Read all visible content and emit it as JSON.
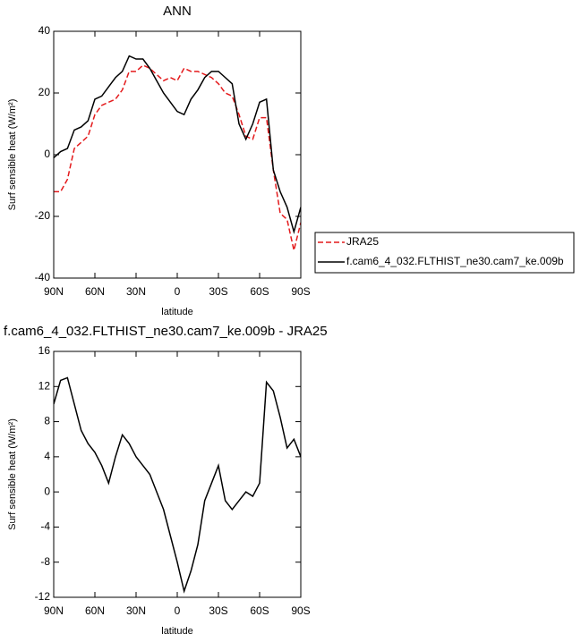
{
  "chart_data": [
    {
      "type": "line",
      "title": "ANN",
      "x_label": "latitude",
      "y_label": "Surf sensible heat (W/m²)",
      "x": [
        90,
        85,
        80,
        75,
        70,
        65,
        60,
        55,
        50,
        45,
        40,
        35,
        30,
        25,
        20,
        15,
        10,
        5,
        0,
        -5,
        -10,
        -15,
        -20,
        -25,
        -30,
        -35,
        -40,
        -45,
        -50,
        -55,
        -60,
        -65,
        -70,
        -75,
        -80,
        -85,
        -90
      ],
      "series": [
        {
          "name": "JRA25",
          "color": "#e41a1c",
          "dash": true,
          "values": [
            -12,
            -12,
            -8,
            2,
            4,
            6,
            13,
            16,
            17,
            18,
            21,
            27,
            27,
            29,
            28,
            26,
            24,
            25,
            24,
            28,
            27,
            27,
            26,
            25,
            23,
            20,
            19,
            13,
            6,
            5,
            12,
            12,
            -5,
            -19,
            -21,
            -31,
            -22
          ]
        },
        {
          "name": "f.cam6_4_032.FLTHIST_ne30.cam7_ke.009b",
          "color": "#000000",
          "dash": false,
          "values": [
            -1,
            1,
            2,
            8,
            9,
            11,
            18,
            19,
            22,
            25,
            27,
            32,
            31,
            31,
            28,
            24,
            20,
            17,
            14,
            13,
            18,
            21,
            25,
            27,
            27,
            25,
            23,
            10,
            5,
            10,
            17,
            18,
            -5,
            -12,
            -17,
            -25,
            -17
          ]
        }
      ],
      "xlim": [
        90,
        -90
      ],
      "xticks": [
        {
          "value": 90,
          "label": "90N"
        },
        {
          "value": 60,
          "label": "60N"
        },
        {
          "value": 30,
          "label": "30N"
        },
        0,
        {
          "value": -30,
          "label": "30S"
        },
        {
          "value": -60,
          "label": "60S"
        },
        {
          "value": -90,
          "label": "90S"
        }
      ],
      "ylim": [
        -40,
        40
      ],
      "yticks": [
        -40,
        -20,
        0,
        20,
        40
      ],
      "legend": "outside-right"
    },
    {
      "type": "line",
      "title": "f.cam6_4_032.FLTHIST_ne30.cam7_ke.009b - JRA25",
      "x_label": "latitude",
      "y_label": "Surf sensible heat (W/m²)",
      "x": [
        90,
        85,
        80,
        75,
        70,
        65,
        60,
        55,
        50,
        45,
        40,
        35,
        30,
        25,
        20,
        15,
        10,
        5,
        0,
        -5,
        -10,
        -15,
        -20,
        -25,
        -30,
        -35,
        -40,
        -45,
        -50,
        -55,
        -60,
        -65,
        -70,
        -75,
        -80,
        -85,
        -90
      ],
      "series": [
        {
          "color": "#000000",
          "dash": false,
          "values": [
            10,
            12.7,
            13,
            10,
            7,
            5.5,
            4.5,
            3,
            1,
            4,
            6.5,
            5.5,
            4,
            3,
            2,
            0,
            -2,
            -5,
            -8,
            -11.3,
            -9,
            -6,
            -1,
            1,
            3,
            -1,
            -2,
            -1,
            0,
            -0.5,
            1,
            12.5,
            11.5,
            8.5,
            5,
            6,
            4
          ]
        }
      ],
      "xlim": [
        90,
        -90
      ],
      "xticks": [
        {
          "value": 90,
          "label": "90N"
        },
        {
          "value": 60,
          "label": "60N"
        },
        {
          "value": 30,
          "label": "30N"
        },
        0,
        {
          "value": -30,
          "label": "30S"
        },
        {
          "value": -60,
          "label": "60S"
        },
        {
          "value": -90,
          "label": "90S"
        }
      ],
      "ylim": [
        -12,
        16
      ],
      "yticks": [
        -12,
        -8,
        -4,
        0,
        4,
        8,
        12,
        16
      ]
    }
  ]
}
